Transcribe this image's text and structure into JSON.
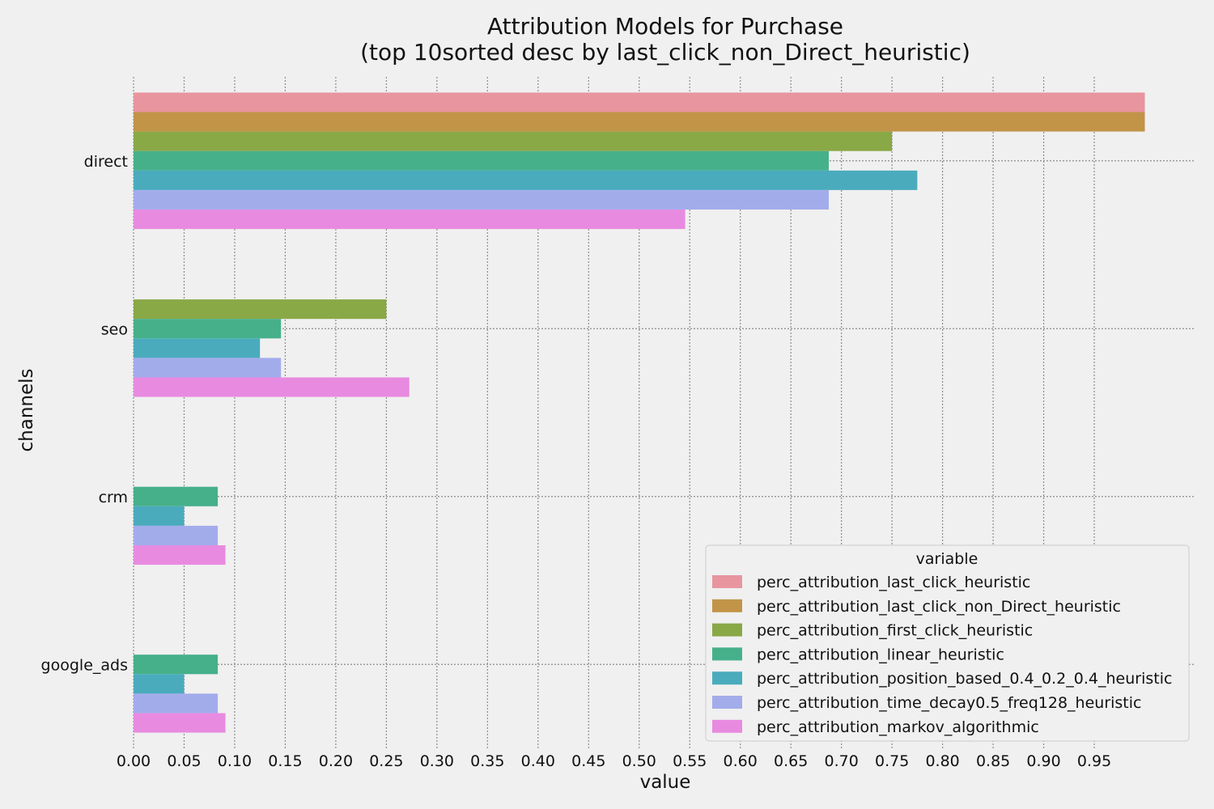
{
  "chart_data": {
    "type": "bar",
    "orientation": "horizontal",
    "title_lines": [
      "Attribution Models for Purchase",
      "(top 10sorted desc by last_click_non_Direct_heuristic)"
    ],
    "xlabel": "value",
    "ylabel": "channels",
    "xlim": [
      0,
      1.05
    ],
    "xticks": [
      "0.00",
      "0.05",
      "0.10",
      "0.15",
      "0.20",
      "0.25",
      "0.30",
      "0.35",
      "0.40",
      "0.45",
      "0.50",
      "0.55",
      "0.60",
      "0.65",
      "0.70",
      "0.75",
      "0.80",
      "0.85",
      "0.90",
      "0.95"
    ],
    "grid": true,
    "legend_title": "variable",
    "legend_position": "bottom-right",
    "categories": [
      "direct",
      "seo",
      "crm",
      "google_ads"
    ],
    "series": [
      {
        "name": "perc_attribution_last_click_heuristic",
        "color": "#e8959f",
        "values": [
          1.0,
          0,
          0,
          0
        ]
      },
      {
        "name": "perc_attribution_last_click_non_Direct_heuristic",
        "color": "#c19448",
        "values": [
          1.0,
          0,
          0,
          0
        ]
      },
      {
        "name": "perc_attribution_first_click_heuristic",
        "color": "#89a846",
        "values": [
          0.75,
          0.25,
          0,
          0
        ]
      },
      {
        "name": "perc_attribution_linear_heuristic",
        "color": "#46b08b",
        "values": [
          0.6875,
          0.1458,
          0.0833,
          0.0833
        ]
      },
      {
        "name": "perc_attribution_position_based_0.4_0.2_0.4_heuristic",
        "color": "#4aabbd",
        "values": [
          0.775,
          0.125,
          0.05,
          0.05
        ]
      },
      {
        "name": "perc_attribution_time_decay0.5_freq128_heuristic",
        "color": "#a3aceb",
        "values": [
          0.6875,
          0.1458,
          0.0833,
          0.0833
        ]
      },
      {
        "name": "perc_attribution_markov_algorithmic",
        "color": "#e88be0",
        "values": [
          0.5455,
          0.2727,
          0.0909,
          0.0909
        ]
      }
    ]
  }
}
